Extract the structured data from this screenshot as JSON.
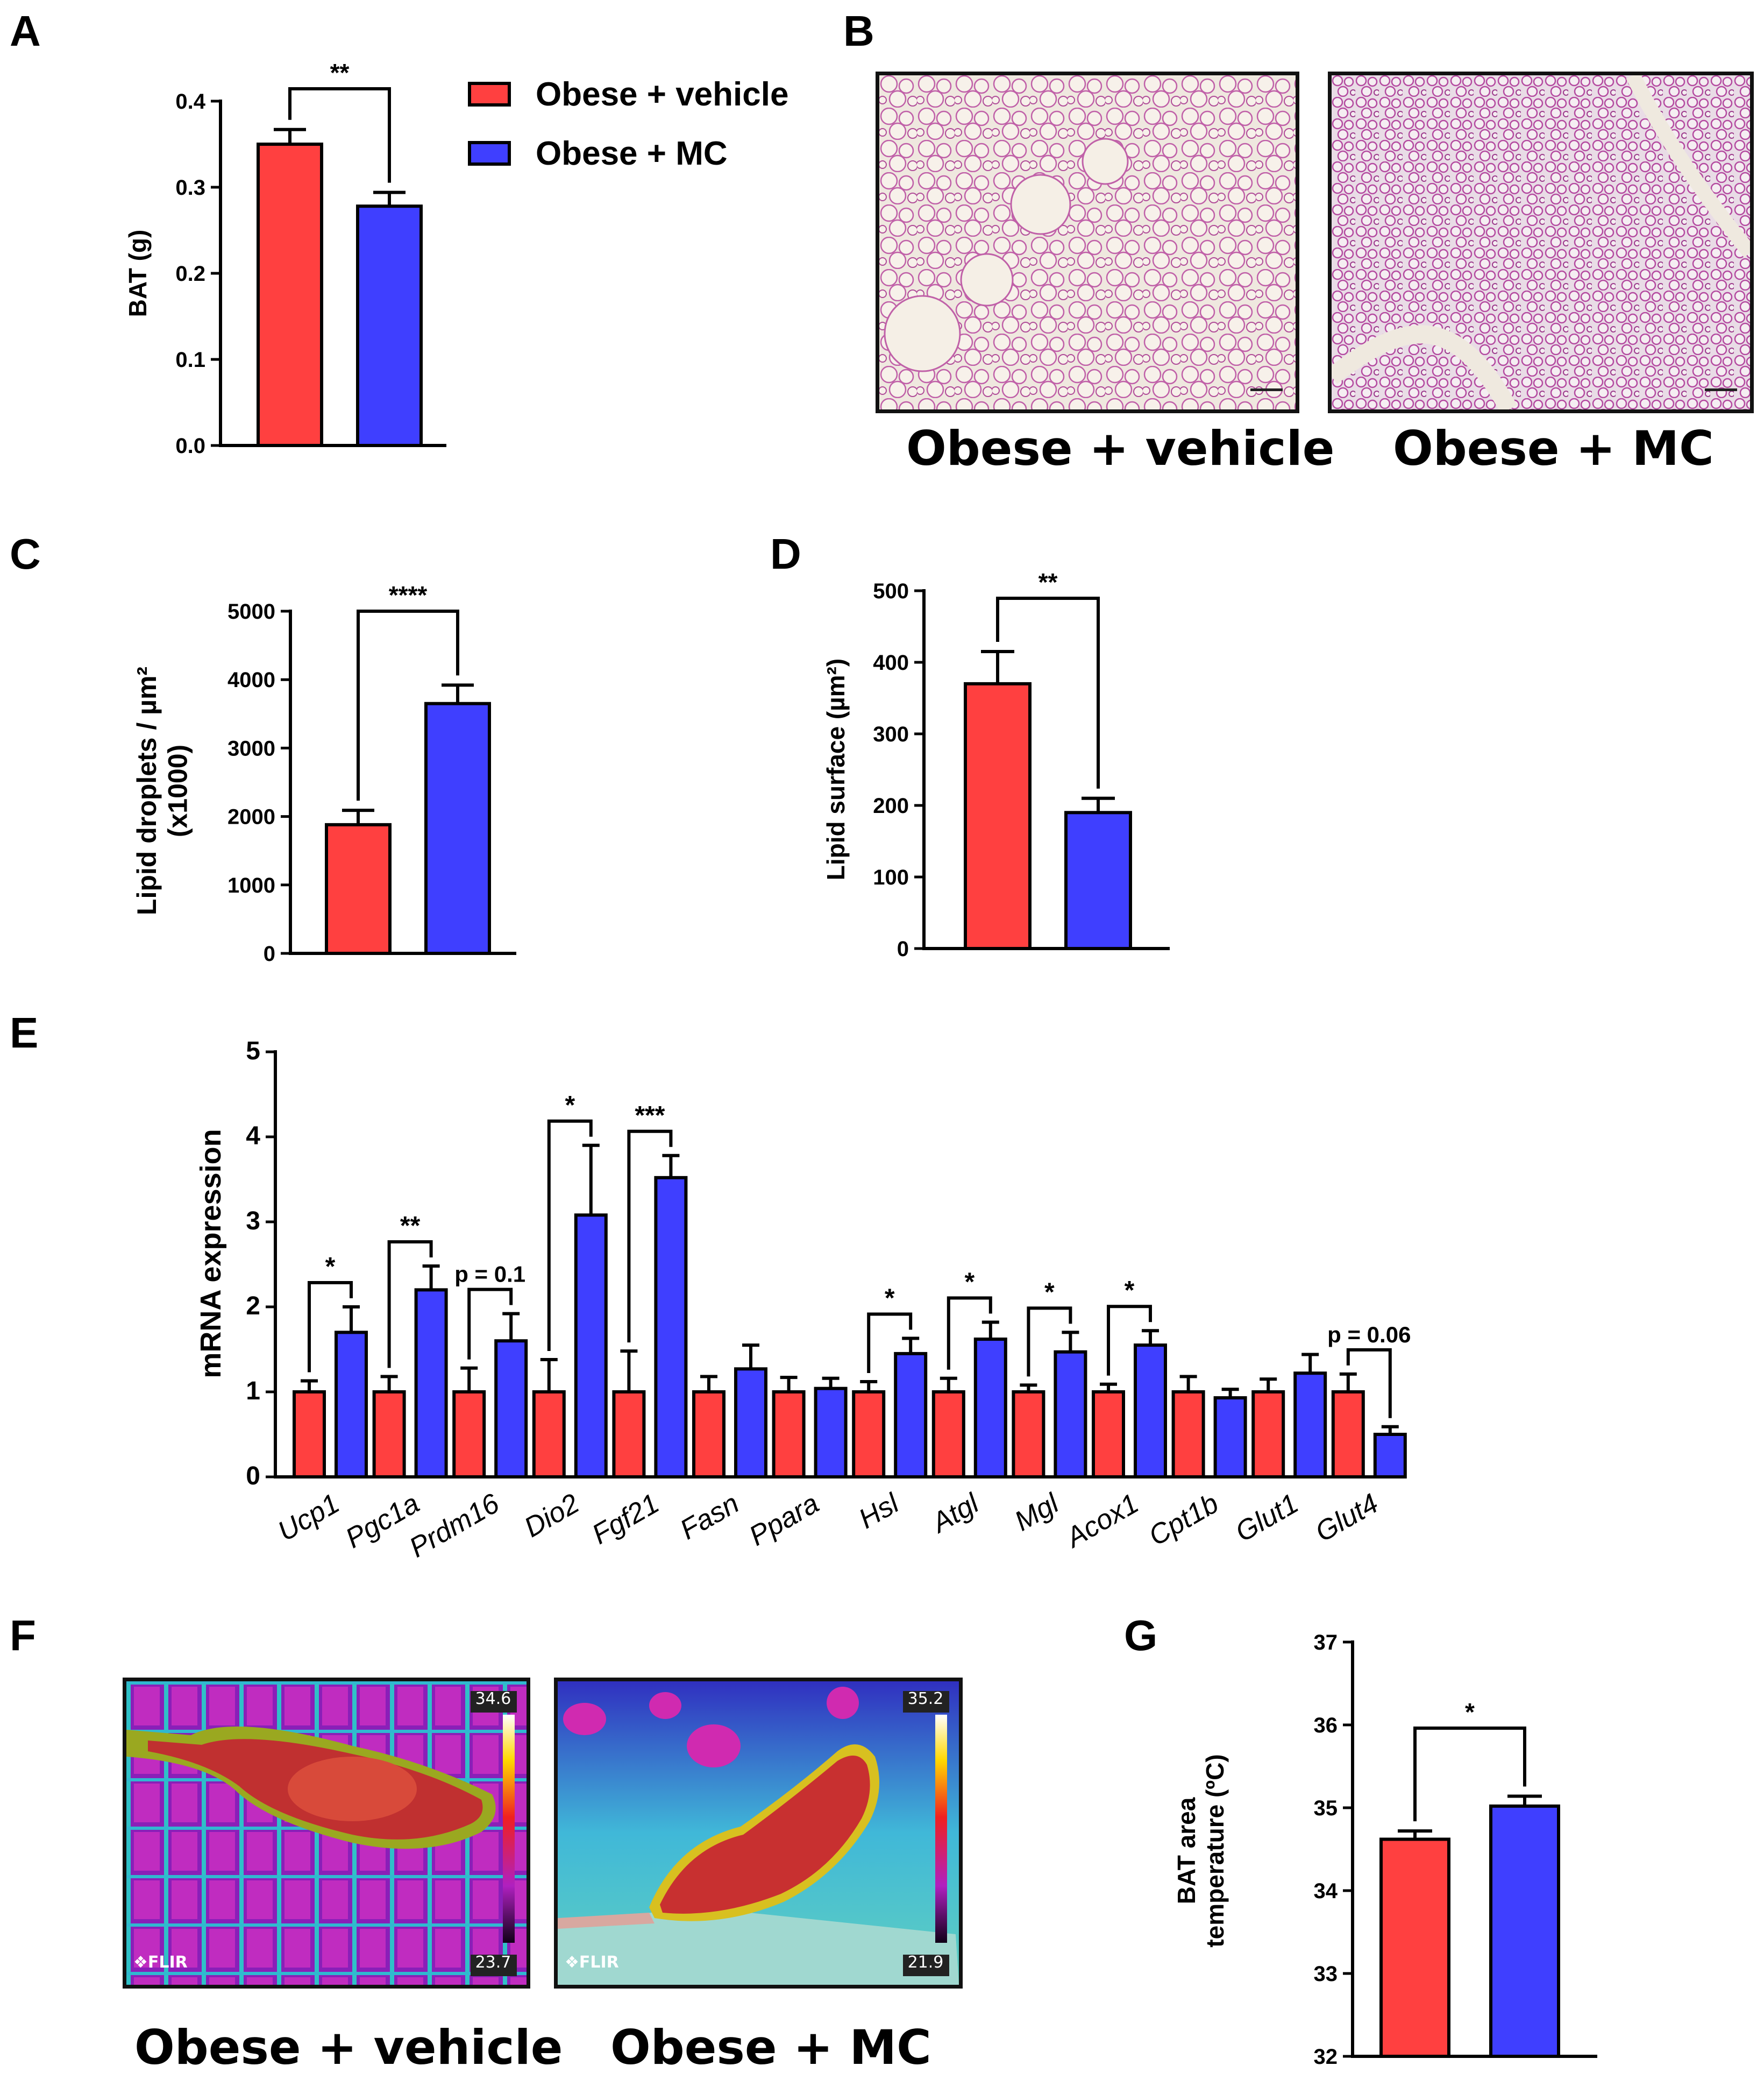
{
  "colors": {
    "vehicle": "#ff4040",
    "mc": "#3f3fff",
    "axis": "#000000"
  },
  "panel_labels": [
    "A",
    "B",
    "C",
    "D",
    "E",
    "F",
    "G"
  ],
  "legend": [
    {
      "label": "Obese + vehicle",
      "color": "#ff4040"
    },
    {
      "label": "Obese + MC",
      "color": "#3f3fff"
    }
  ],
  "histology": {
    "captions": [
      "Obese + vehicle",
      "Obese + MC"
    ]
  },
  "thermal": {
    "captions": [
      "Obese + vehicle",
      "Obese + MC"
    ],
    "images": [
      {
        "max": "34.6",
        "min": "23.7",
        "brand": "❖FLIR"
      },
      {
        "max": "35.2",
        "min": "21.9",
        "brand": "❖FLIR"
      }
    ]
  },
  "chart_data": [
    {
      "id": "A",
      "type": "bar",
      "title": "",
      "ylabel": "BAT (g)",
      "ylim": [
        0,
        0.4
      ],
      "yticks": [
        "0.0",
        "0.1",
        "0.2",
        "0.3",
        "0.4"
      ],
      "categories": [
        "Obese + vehicle",
        "Obese + MC"
      ],
      "values": [
        0.35,
        0.278
      ],
      "errors": [
        0.017,
        0.016
      ],
      "significance": [
        {
          "from": 0,
          "to": 1,
          "label": "**"
        }
      ]
    },
    {
      "id": "C",
      "type": "bar",
      "title": "",
      "ylabel": "Lipid droplets / µm²",
      "ylabel2": "(x1000)",
      "ylim": [
        0,
        5000
      ],
      "yticks": [
        "0",
        "1000",
        "2000",
        "3000",
        "4000",
        "5000"
      ],
      "categories": [
        "Obese + vehicle",
        "Obese + MC"
      ],
      "values": [
        1880,
        3650
      ],
      "errors": [
        210,
        270
      ],
      "significance": [
        {
          "from": 0,
          "to": 1,
          "label": "****"
        }
      ]
    },
    {
      "id": "D",
      "type": "bar",
      "title": "",
      "ylabel": "Lipid surface (µm²)",
      "ylim": [
        0,
        500
      ],
      "yticks": [
        "0",
        "100",
        "200",
        "300",
        "400",
        "500"
      ],
      "categories": [
        "Obese + vehicle",
        "Obese + MC"
      ],
      "values": [
        370,
        190
      ],
      "errors": [
        45,
        20
      ],
      "significance": [
        {
          "from": 0,
          "to": 1,
          "label": "**"
        }
      ]
    },
    {
      "id": "E",
      "type": "bar",
      "title": "",
      "ylabel": "mRNA expression",
      "ylim": [
        0,
        5
      ],
      "yticks": [
        "0",
        "1",
        "2",
        "3",
        "4",
        "5"
      ],
      "categories": [
        "Ucp1",
        "Pgc1a",
        "Prdm16",
        "Dio2",
        "Fgf21",
        "Fasn",
        "Ppara",
        "Hsl",
        "Atgl",
        "Mgl",
        "Acox1",
        "Cpt1b",
        "Glut1",
        "Glut4"
      ],
      "series": [
        {
          "name": "Obese + vehicle",
          "values": [
            1,
            1,
            1,
            1,
            1,
            1,
            1,
            1,
            1,
            1,
            1,
            1,
            1,
            1
          ],
          "errors": [
            0.13,
            0.18,
            0.28,
            0.38,
            0.48,
            0.18,
            0.17,
            0.12,
            0.16,
            0.08,
            0.09,
            0.18,
            0.15,
            0.21
          ]
        },
        {
          "name": "Obese + MC",
          "values": [
            1.7,
            2.2,
            1.6,
            3.08,
            3.52,
            1.27,
            1.04,
            1.45,
            1.62,
            1.47,
            1.55,
            0.93,
            1.22,
            0.5
          ],
          "errors": [
            0.3,
            0.28,
            0.32,
            0.82,
            0.26,
            0.28,
            0.12,
            0.18,
            0.2,
            0.23,
            0.17,
            0.1,
            0.22,
            0.09
          ]
        }
      ],
      "significance": [
        {
          "index": 0,
          "label": "*"
        },
        {
          "index": 1,
          "label": "**"
        },
        {
          "index": 2,
          "label": "p = 0.1"
        },
        {
          "index": 3,
          "label": "*"
        },
        {
          "index": 4,
          "label": "***"
        },
        {
          "index": 7,
          "label": "*"
        },
        {
          "index": 8,
          "label": "*"
        },
        {
          "index": 9,
          "label": "*"
        },
        {
          "index": 10,
          "label": "*"
        },
        {
          "index": 13,
          "label": "p = 0.06"
        }
      ]
    },
    {
      "id": "G",
      "type": "bar",
      "title": "",
      "ylabel": "BAT area",
      "ylabel2": "temperature (ºC)",
      "ylim": [
        32,
        37
      ],
      "yticks": [
        "32",
        "33",
        "34",
        "35",
        "36",
        "37"
      ],
      "categories": [
        "Obese + vehicle",
        "Obese + MC"
      ],
      "values": [
        34.62,
        35.02
      ],
      "errors": [
        0.1,
        0.12
      ],
      "significance": [
        {
          "from": 0,
          "to": 1,
          "label": "*"
        }
      ]
    }
  ]
}
